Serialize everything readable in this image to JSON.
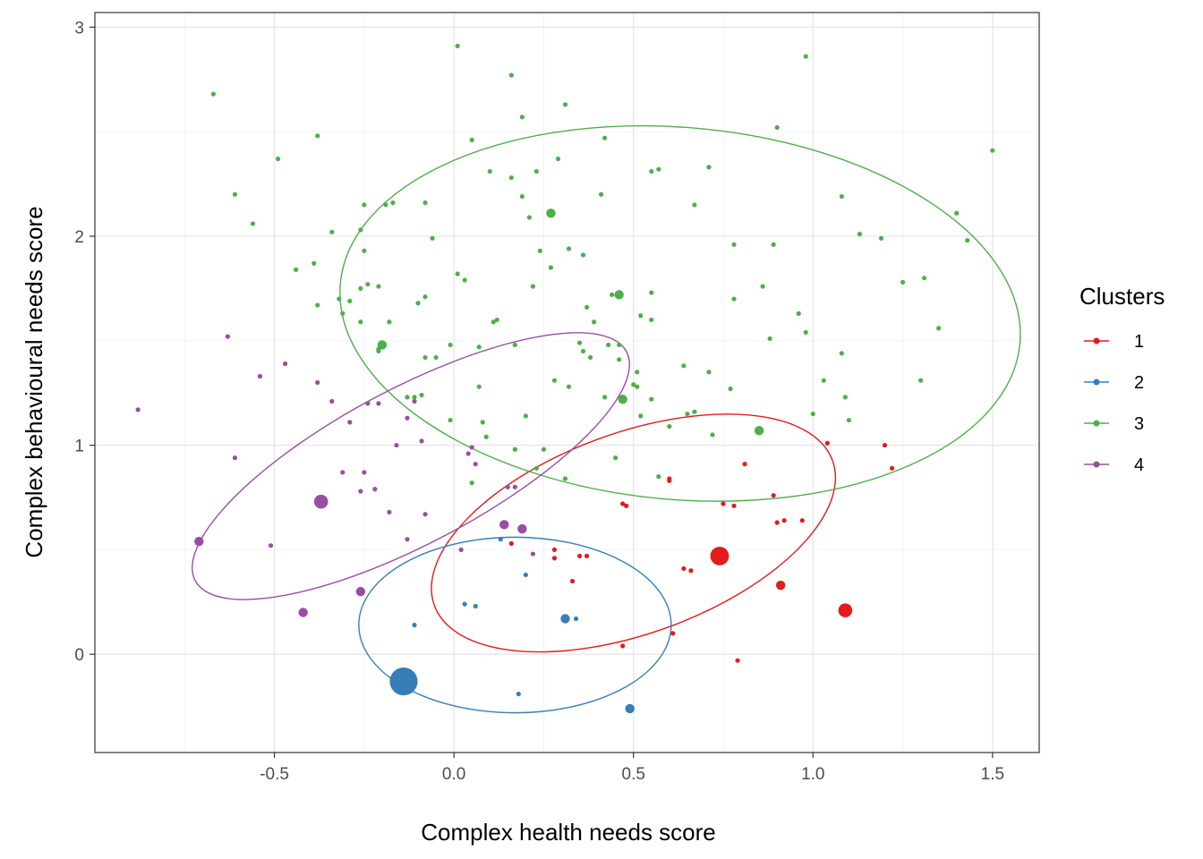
{
  "chart_data": {
    "type": "scatter",
    "xlabel": "Complex health needs score",
    "ylabel": "Complex behavioural needs score",
    "xlim": [
      -1.0,
      1.63
    ],
    "ylim": [
      -0.47,
      3.07
    ],
    "xticks": [
      -0.5,
      0.0,
      0.5,
      1.0,
      1.5
    ],
    "xtick_labels": [
      "-0.5",
      "0.0",
      "0.5",
      "1.0",
      "1.5"
    ],
    "yticks": [
      0,
      1,
      2,
      3
    ],
    "ytick_labels": [
      "0",
      "1",
      "2",
      "3"
    ],
    "grid": true,
    "legend": {
      "title": "Clusters",
      "position": "right"
    },
    "series": [
      {
        "name": "1",
        "color": "#e41a1c",
        "ellipse": {
          "cx": 0.5,
          "cy": 0.58,
          "rx": 0.59,
          "ry": 0.48,
          "angle_deg": 20
        },
        "points": [
          [
            0.6,
            0.84,
            1
          ],
          [
            0.6,
            0.83,
            1
          ],
          [
            0.81,
            0.91,
            1
          ],
          [
            0.89,
            0.76,
            1
          ],
          [
            1.04,
            1.01,
            1
          ],
          [
            1.2,
            1.0,
            1
          ],
          [
            1.22,
            0.89,
            1
          ],
          [
            0.47,
            0.72,
            1
          ],
          [
            0.48,
            0.71,
            1
          ],
          [
            0.75,
            0.72,
            1
          ],
          [
            0.78,
            0.71,
            1
          ],
          [
            0.9,
            0.63,
            1
          ],
          [
            0.92,
            0.64,
            1
          ],
          [
            0.97,
            0.64,
            1
          ],
          [
            0.74,
            0.47,
            4
          ],
          [
            0.91,
            0.33,
            2
          ],
          [
            1.09,
            0.21,
            3
          ],
          [
            0.28,
            0.5,
            1
          ],
          [
            0.28,
            0.46,
            1
          ],
          [
            0.35,
            0.47,
            1
          ],
          [
            0.37,
            0.47,
            1
          ],
          [
            0.33,
            0.35,
            1
          ],
          [
            0.64,
            0.41,
            1
          ],
          [
            0.66,
            0.4,
            1
          ],
          [
            0.61,
            0.1,
            1
          ],
          [
            0.47,
            0.04,
            1
          ],
          [
            0.79,
            -0.03,
            1
          ],
          [
            0.16,
            0.53,
            1
          ]
        ]
      },
      {
        "name": "2",
        "color": "#377eb8",
        "ellipse": {
          "cx": 0.17,
          "cy": 0.14,
          "rx": 0.435,
          "ry": 0.42,
          "angle_deg": 0
        },
        "points": [
          [
            -0.14,
            -0.13,
            6
          ],
          [
            0.31,
            0.17,
            2
          ],
          [
            0.34,
            0.17,
            1
          ],
          [
            0.49,
            -0.26,
            2
          ],
          [
            0.18,
            -0.19,
            1
          ],
          [
            0.2,
            0.38,
            1
          ],
          [
            -0.11,
            0.14,
            1
          ],
          [
            0.03,
            0.24,
            1
          ],
          [
            0.06,
            0.23,
            1
          ],
          [
            0.13,
            0.55,
            1
          ]
        ]
      },
      {
        "name": "3",
        "color": "#4daf4a",
        "ellipse": {
          "cx": 0.63,
          "cy": 1.63,
          "rx": 0.95,
          "ry": 0.89,
          "angle_deg": -5
        },
        "points": [
          [
            -0.67,
            2.68,
            1
          ],
          [
            0.01,
            2.91,
            1
          ],
          [
            0.16,
            2.77,
            1
          ],
          [
            0.98,
            2.86,
            1
          ],
          [
            0.31,
            2.63,
            1
          ],
          [
            -0.38,
            2.48,
            1
          ],
          [
            -0.49,
            2.37,
            1
          ],
          [
            0.05,
            2.46,
            1
          ],
          [
            0.19,
            2.57,
            1
          ],
          [
            0.42,
            2.47,
            1
          ],
          [
            0.9,
            2.52,
            1
          ],
          [
            1.5,
            2.41,
            1
          ],
          [
            0.1,
            2.31,
            1
          ],
          [
            0.16,
            2.28,
            1
          ],
          [
            0.23,
            2.31,
            1
          ],
          [
            0.29,
            2.37,
            1
          ],
          [
            0.55,
            2.31,
            1
          ],
          [
            0.57,
            2.32,
            1
          ],
          [
            0.71,
            2.33,
            1
          ],
          [
            -0.61,
            2.2,
            1
          ],
          [
            -0.25,
            2.15,
            1
          ],
          [
            -0.19,
            2.15,
            1
          ],
          [
            -0.17,
            2.16,
            1
          ],
          [
            -0.08,
            2.16,
            1
          ],
          [
            0.19,
            2.19,
            1
          ],
          [
            0.41,
            2.2,
            1
          ],
          [
            0.67,
            2.15,
            1
          ],
          [
            1.08,
            2.19,
            1
          ],
          [
            -0.56,
            2.06,
            1
          ],
          [
            -0.34,
            2.02,
            1
          ],
          [
            -0.26,
            2.03,
            1
          ],
          [
            0.21,
            2.09,
            1
          ],
          [
            0.27,
            2.11,
            2
          ],
          [
            1.13,
            2.01,
            1
          ],
          [
            1.4,
            2.11,
            1
          ],
          [
            -0.06,
            1.99,
            1
          ],
          [
            0.78,
            1.96,
            1
          ],
          [
            0.89,
            1.96,
            1
          ],
          [
            1.19,
            1.99,
            1
          ],
          [
            1.43,
            1.98,
            1
          ],
          [
            -0.25,
            1.93,
            1
          ],
          [
            0.24,
            1.93,
            1
          ],
          [
            0.32,
            1.94,
            1
          ],
          [
            0.36,
            1.91,
            1
          ],
          [
            -0.39,
            1.87,
            1
          ],
          [
            -0.44,
            1.84,
            1
          ],
          [
            0.27,
            1.85,
            1
          ],
          [
            0.01,
            1.82,
            1
          ],
          [
            0.03,
            1.79,
            1
          ],
          [
            -0.26,
            1.75,
            1
          ],
          [
            -0.24,
            1.77,
            1
          ],
          [
            -0.21,
            1.76,
            1
          ],
          [
            0.22,
            1.76,
            1
          ],
          [
            0.86,
            1.76,
            1
          ],
          [
            1.25,
            1.78,
            1
          ],
          [
            1.31,
            1.8,
            1
          ],
          [
            0.55,
            1.73,
            1
          ],
          [
            -0.32,
            1.7,
            1
          ],
          [
            -0.29,
            1.69,
            1
          ],
          [
            -0.1,
            1.68,
            1
          ],
          [
            -0.08,
            1.71,
            1
          ],
          [
            0.44,
            1.72,
            1
          ],
          [
            0.46,
            1.72,
            2
          ],
          [
            0.78,
            1.7,
            1
          ],
          [
            -0.38,
            1.67,
            1
          ],
          [
            -0.31,
            1.63,
            1
          ],
          [
            0.37,
            1.66,
            1
          ],
          [
            0.52,
            1.62,
            1
          ],
          [
            -0.26,
            1.59,
            1
          ],
          [
            -0.18,
            1.59,
            1
          ],
          [
            0.11,
            1.59,
            1
          ],
          [
            0.12,
            1.6,
            1
          ],
          [
            0.39,
            1.59,
            1
          ],
          [
            0.55,
            1.6,
            1
          ],
          [
            0.96,
            1.63,
            1
          ],
          [
            1.35,
            1.56,
            1
          ],
          [
            -0.21,
            1.46,
            1
          ],
          [
            -0.2,
            1.48,
            2
          ],
          [
            -0.21,
            1.45,
            1
          ],
          [
            -0.01,
            1.48,
            1
          ],
          [
            0.07,
            1.47,
            1
          ],
          [
            0.17,
            1.48,
            1
          ],
          [
            0.35,
            1.49,
            1
          ],
          [
            0.36,
            1.45,
            1
          ],
          [
            0.43,
            1.48,
            1
          ],
          [
            0.46,
            1.48,
            1
          ],
          [
            0.98,
            1.54,
            1
          ],
          [
            0.88,
            1.51,
            1
          ],
          [
            -0.08,
            1.42,
            1
          ],
          [
            -0.05,
            1.42,
            1
          ],
          [
            0.38,
            1.42,
            1
          ],
          [
            0.46,
            1.41,
            1
          ],
          [
            0.51,
            1.35,
            1
          ],
          [
            0.64,
            1.38,
            1
          ],
          [
            0.71,
            1.35,
            1
          ],
          [
            0.28,
            1.31,
            1
          ],
          [
            0.32,
            1.28,
            1
          ],
          [
            0.5,
            1.29,
            1
          ],
          [
            0.51,
            1.28,
            1
          ],
          [
            0.07,
            1.28,
            1
          ],
          [
            0.77,
            1.27,
            1
          ],
          [
            1.03,
            1.31,
            1
          ],
          [
            1.08,
            1.44,
            1
          ],
          [
            1.3,
            1.31,
            1
          ],
          [
            -0.13,
            1.23,
            1
          ],
          [
            -0.11,
            1.23,
            1
          ],
          [
            -0.09,
            1.24,
            1
          ],
          [
            0.42,
            1.23,
            1
          ],
          [
            0.47,
            1.22,
            2
          ],
          [
            0.55,
            1.22,
            1
          ],
          [
            1.09,
            1.23,
            1
          ],
          [
            -0.01,
            1.12,
            1
          ],
          [
            0.08,
            1.11,
            1
          ],
          [
            0.2,
            1.14,
            1
          ],
          [
            0.52,
            1.14,
            1
          ],
          [
            0.65,
            1.15,
            1
          ],
          [
            0.67,
            1.16,
            1
          ],
          [
            1.0,
            1.15,
            1
          ],
          [
            1.1,
            1.12,
            1
          ],
          [
            0.6,
            1.09,
            1
          ],
          [
            0.72,
            1.05,
            1
          ],
          [
            0.85,
            1.07,
            2
          ],
          [
            0.09,
            1.04,
            1
          ],
          [
            0.17,
            0.98,
            1
          ],
          [
            0.25,
            0.98,
            1
          ],
          [
            0.45,
            0.94,
            1
          ],
          [
            0.31,
            0.84,
            1
          ],
          [
            0.57,
            0.85,
            1
          ],
          [
            0.05,
            0.82,
            1
          ],
          [
            0.23,
            0.89,
            1
          ]
        ]
      },
      {
        "name": "4",
        "color": "#984ea3",
        "ellipse": {
          "cx": -0.12,
          "cy": 0.9,
          "rx": 0.68,
          "ry": 0.37,
          "angle_deg": 28
        },
        "points": [
          [
            -0.88,
            1.17,
            1
          ],
          [
            -0.63,
            1.52,
            1
          ],
          [
            -0.47,
            1.39,
            1
          ],
          [
            -0.54,
            1.33,
            1
          ],
          [
            -0.38,
            1.3,
            1
          ],
          [
            -0.34,
            1.21,
            1
          ],
          [
            -0.24,
            1.2,
            1
          ],
          [
            -0.21,
            1.2,
            1
          ],
          [
            -0.13,
            1.13,
            1
          ],
          [
            -0.11,
            1.21,
            1
          ],
          [
            -0.29,
            1.11,
            1
          ],
          [
            -0.16,
            1.0,
            1
          ],
          [
            -0.09,
            1.02,
            1
          ],
          [
            0.04,
            0.96,
            1
          ],
          [
            0.05,
            0.99,
            1
          ],
          [
            0.06,
            0.91,
            1
          ],
          [
            -0.61,
            0.94,
            1
          ],
          [
            -0.31,
            0.87,
            1
          ],
          [
            -0.25,
            0.87,
            1
          ],
          [
            -0.26,
            0.78,
            1
          ],
          [
            -0.22,
            0.79,
            1
          ],
          [
            -0.37,
            0.73,
            3
          ],
          [
            -0.18,
            0.68,
            1
          ],
          [
            -0.08,
            0.67,
            1
          ],
          [
            0.15,
            0.8,
            1
          ],
          [
            0.17,
            0.8,
            1
          ],
          [
            0.19,
            0.6,
            2
          ],
          [
            -0.13,
            0.55,
            1
          ],
          [
            -0.51,
            0.52,
            1
          ],
          [
            -0.71,
            0.54,
            2
          ],
          [
            0.14,
            0.62,
            2
          ],
          [
            0.02,
            0.5,
            1
          ],
          [
            0.22,
            0.48,
            1
          ],
          [
            -0.26,
            0.3,
            2
          ],
          [
            -0.42,
            0.2,
            2
          ]
        ]
      }
    ]
  }
}
